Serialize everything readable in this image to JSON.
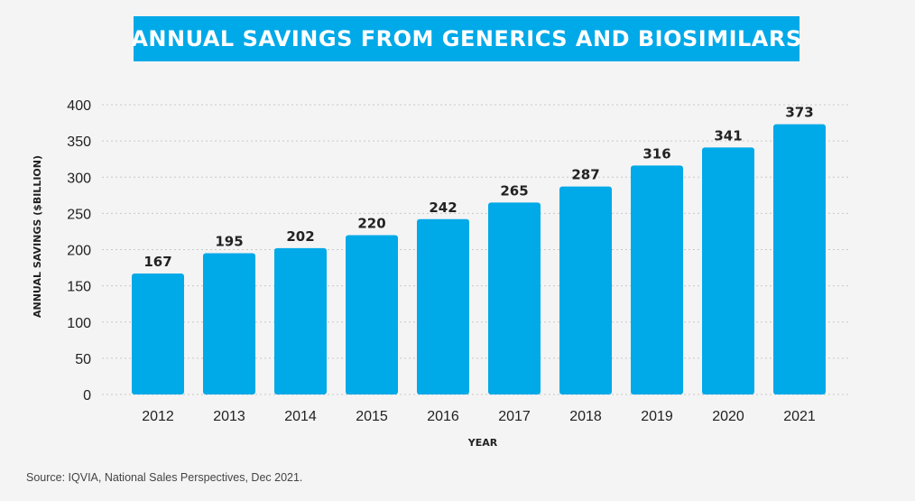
{
  "chart_data": {
    "type": "bar",
    "title": "ANNUAL SAVINGS FROM GENERICS AND BIOSIMILARS",
    "xlabel": "YEAR",
    "ylabel": "ANNUAL SAVINGS ($BILLION)",
    "categories": [
      "2012",
      "2013",
      "2014",
      "2015",
      "2016",
      "2017",
      "2018",
      "2019",
      "2020",
      "2021"
    ],
    "values": [
      167,
      195,
      202,
      220,
      242,
      265,
      287,
      316,
      341,
      373
    ],
    "ylim": [
      0,
      400
    ],
    "yticks": [
      0,
      50,
      100,
      150,
      200,
      250,
      300,
      350,
      400
    ],
    "grid": true,
    "bar_color": "#00a9e8",
    "source": "Source: IQVIA, National Sales Perspectives, Dec 2021."
  }
}
